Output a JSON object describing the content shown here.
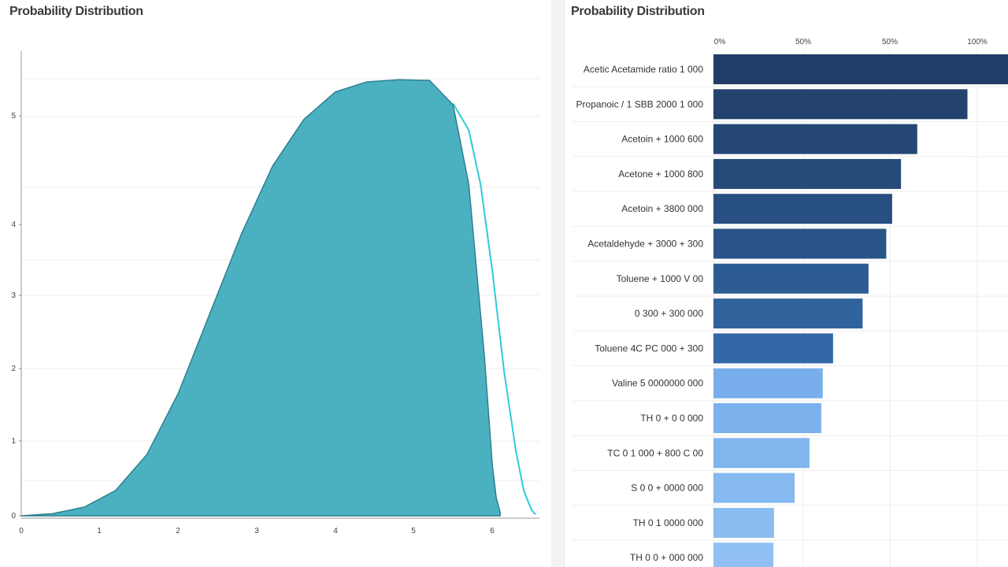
{
  "left_title": "Probability Distribution",
  "right_title": "Probability Distribution",
  "chart_data": [
    {
      "type": "area",
      "title": "Probability Distribution",
      "xlabel": "",
      "ylabel": "",
      "grid": true,
      "colors": {
        "fill": "#4bb1c0",
        "edge": "#2e7f8f",
        "outline": "#2ecbd9"
      },
      "x_ticks": [
        "0",
        "1",
        "2",
        "3",
        "4",
        "5",
        "6"
      ],
      "y_ticks": [
        "0",
        "1",
        "2",
        "3",
        "4",
        "5"
      ],
      "xlim": [
        0,
        6.6
      ],
      "ylim": [
        0,
        6.5
      ],
      "series": [
        {
          "x": [
            0,
            0.4,
            0.8,
            1.2,
            1.6,
            2.0,
            2.4,
            2.8,
            3.2,
            3.6,
            4.0,
            4.4,
            4.8,
            5.2,
            5.5,
            5.7,
            5.9,
            6.0,
            6.05,
            6.1
          ],
          "y": [
            0.0,
            0.03,
            0.12,
            0.35,
            0.85,
            1.7,
            2.8,
            3.9,
            4.85,
            5.5,
            5.88,
            6.02,
            6.05,
            6.04,
            5.7,
            4.6,
            2.2,
            0.7,
            0.25,
            0.05
          ]
        },
        {
          "x": [
            5.5,
            5.7,
            5.85,
            6.0,
            6.15,
            6.3,
            6.4,
            6.5,
            6.55
          ],
          "y": [
            5.72,
            5.35,
            4.6,
            3.4,
            2.0,
            0.9,
            0.35,
            0.08,
            0.02
          ]
        }
      ]
    },
    {
      "type": "bar",
      "orientation": "horizontal",
      "title": "Probability Distribution",
      "x_ticks": [
        "0%",
        "50%",
        "50%",
        "100%"
      ],
      "xlim": [
        0,
        100
      ],
      "categories": [
        "Acetic Acetamide ratio 1 000",
        "Propanoic / 1 SBB 2000 1 000",
        "Acetoin + 1000 600",
        "Acetone + 1000 800",
        "Acetoin + 3800 000",
        "Acetaldehyde + 3000 + 300",
        "Toluene + 1000 V 00",
        "0 300 + 300 000",
        "Toluene 4C PC 000 + 300",
        "Valine 5 0000000 000",
        "TH 0 + 0 0 000",
        "TC 0 1 000 + 800 C 00",
        "S 0 0 + 0000 000",
        "TH 0 1 0000 000",
        "TH 0 0 + 000 000"
      ],
      "values": [
        100,
        86,
        69,
        63.5,
        60.5,
        58.5,
        52.5,
        50.5,
        40.5,
        37,
        36.5,
        32.5,
        27.5,
        20.5,
        20.3
      ],
      "colors": [
        "#1f3d66",
        "#23426d",
        "#244775",
        "#264b7b",
        "#284f81",
        "#2a5488",
        "#2d5c93",
        "#30629b",
        "#3367a6",
        "#78aeec",
        "#7bb1ed",
        "#80b5ee",
        "#86b9ef",
        "#8bbdf0",
        "#8fc0f1"
      ]
    }
  ]
}
